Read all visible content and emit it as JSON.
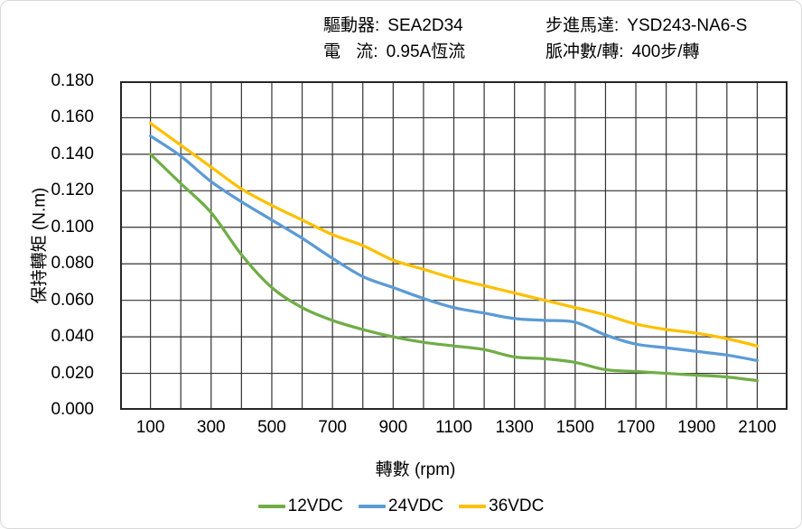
{
  "header": {
    "left": [
      {
        "label": "驅動器:",
        "value": "SEA2D34"
      },
      {
        "label": "電 流:",
        "value": "0.95A恆流"
      }
    ],
    "right": [
      {
        "label": "步進馬達:",
        "value": "YSD243-NA6-S"
      },
      {
        "label": "脈冲數/轉:",
        "value": "400步/轉"
      }
    ]
  },
  "chart_data": {
    "type": "line",
    "title": "",
    "xlabel": "轉數 (rpm)",
    "ylabel": "保持轉矩 (N.m)",
    "x": [
      100,
      200,
      300,
      400,
      500,
      600,
      700,
      800,
      900,
      1000,
      1100,
      1200,
      1300,
      1400,
      1500,
      1600,
      1700,
      1800,
      1900,
      2000,
      2100
    ],
    "series": [
      {
        "name": "12VDC",
        "color": "#70AD47",
        "values": [
          0.14,
          0.124,
          0.108,
          0.085,
          0.067,
          0.056,
          0.049,
          0.044,
          0.04,
          0.037,
          0.035,
          0.033,
          0.029,
          0.028,
          0.026,
          0.022,
          0.021,
          0.02,
          0.019,
          0.018,
          0.016
        ]
      },
      {
        "name": "24VDC",
        "color": "#5B9BD5",
        "values": [
          0.15,
          0.139,
          0.125,
          0.114,
          0.104,
          0.094,
          0.083,
          0.073,
          0.067,
          0.061,
          0.056,
          0.053,
          0.05,
          0.049,
          0.048,
          0.041,
          0.036,
          0.034,
          0.032,
          0.03,
          0.027
        ]
      },
      {
        "name": "36VDC",
        "color": "#FFC000",
        "values": [
          0.157,
          0.145,
          0.133,
          0.121,
          0.112,
          0.104,
          0.096,
          0.09,
          0.082,
          0.077,
          0.072,
          0.068,
          0.064,
          0.06,
          0.056,
          0.052,
          0.047,
          0.044,
          0.042,
          0.039,
          0.035
        ]
      }
    ],
    "xlim": [
      0,
      2200
    ],
    "ylim": [
      0,
      0.18
    ],
    "x_ticks": [
      "100",
      "300",
      "500",
      "700",
      "900",
      "1100",
      "1300",
      "1500",
      "1700",
      "1900",
      "2100"
    ],
    "y_ticks": [
      "0.180",
      "0.160",
      "0.140",
      "0.120",
      "0.100",
      "0.080",
      "0.060",
      "0.040",
      "0.020",
      "0.000"
    ],
    "x_grid_step": 100,
    "y_grid_step": 0.02,
    "grid": true,
    "legend_position": "bottom",
    "grid_color": "#333333",
    "border_color": "#262626"
  }
}
